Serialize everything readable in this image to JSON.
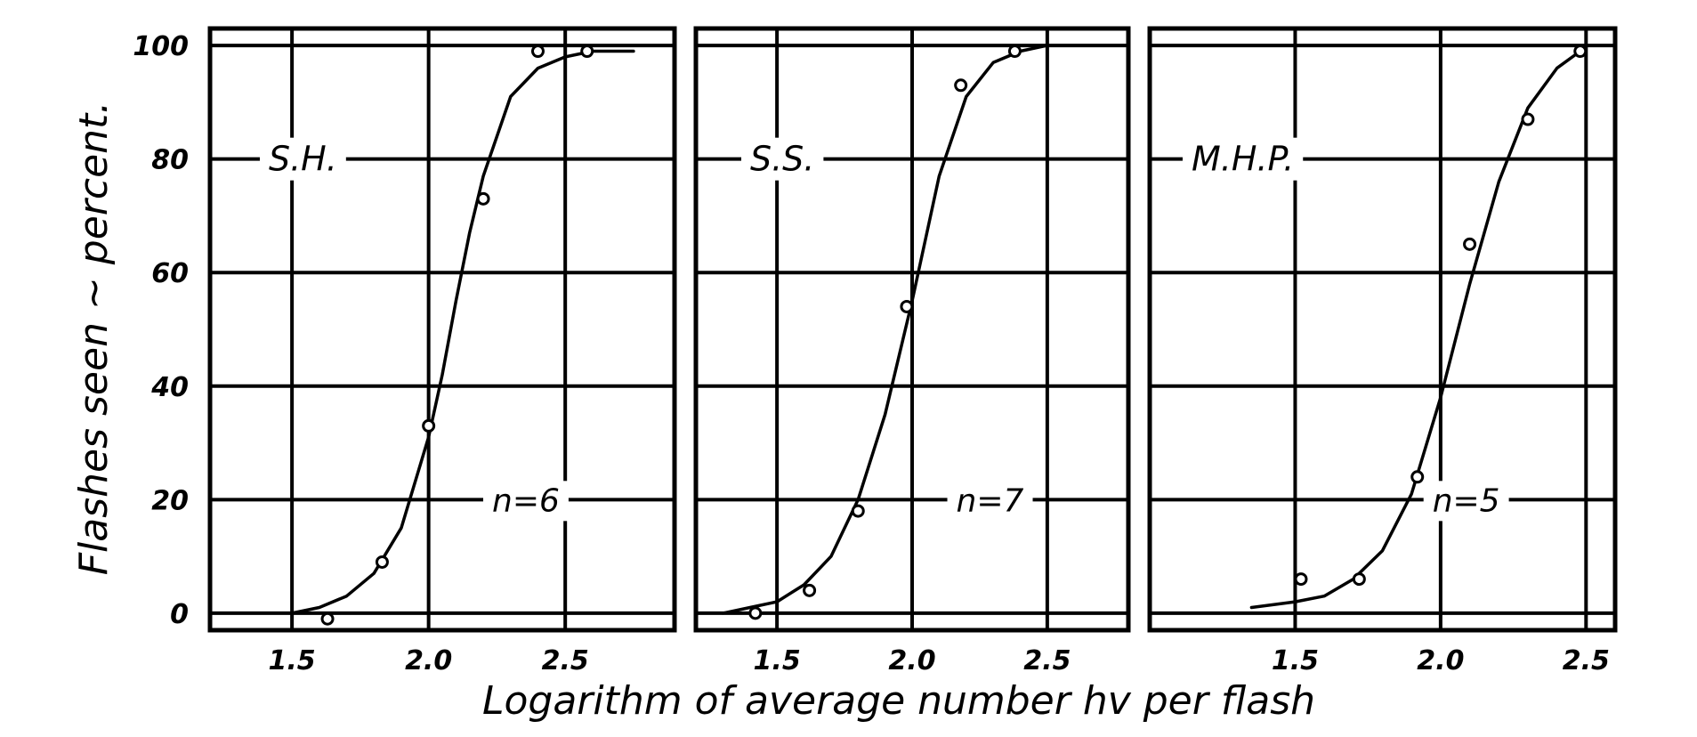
{
  "chart_data": [
    {
      "type": "scatter",
      "panel_label": "S.H.",
      "n_label": "n=6",
      "xlim": [
        1.2,
        2.9
      ],
      "ylim": [
        -3,
        103
      ],
      "x_ticks": [
        1.5,
        2.0,
        2.5
      ],
      "x_tick_labels": [
        "1.5",
        "2.0",
        "2.5"
      ],
      "y_ticks": [
        0,
        20,
        40,
        60,
        80,
        100
      ],
      "y_tick_labels": [
        "0",
        "20",
        "40",
        "60",
        "80",
        "100"
      ],
      "grid": true,
      "series": [
        {
          "points": [
            {
              "x": 1.63,
              "y": -1
            },
            {
              "x": 1.83,
              "y": 9
            },
            {
              "x": 2.0,
              "y": 33
            },
            {
              "x": 2.2,
              "y": 73
            },
            {
              "x": 2.4,
              "y": 99
            },
            {
              "x": 2.58,
              "y": 99
            }
          ],
          "curve": [
            {
              "x": 1.5,
              "y": 0
            },
            {
              "x": 1.6,
              "y": 1
            },
            {
              "x": 1.7,
              "y": 3
            },
            {
              "x": 1.8,
              "y": 7
            },
            {
              "x": 1.9,
              "y": 15
            },
            {
              "x": 2.0,
              "y": 31
            },
            {
              "x": 2.05,
              "y": 42
            },
            {
              "x": 2.1,
              "y": 55
            },
            {
              "x": 2.15,
              "y": 67
            },
            {
              "x": 2.2,
              "y": 77
            },
            {
              "x": 2.3,
              "y": 91
            },
            {
              "x": 2.4,
              "y": 96
            },
            {
              "x": 2.5,
              "y": 98
            },
            {
              "x": 2.6,
              "y": 99
            },
            {
              "x": 2.75,
              "y": 99
            }
          ]
        }
      ]
    },
    {
      "type": "scatter",
      "panel_label": "S.S.",
      "n_label": "n=7",
      "xlim": [
        1.2,
        2.8
      ],
      "ylim": [
        -3,
        103
      ],
      "x_ticks": [
        1.5,
        2.0,
        2.5
      ],
      "x_tick_labels": [
        "1.5",
        "2.0",
        "2.5"
      ],
      "y_ticks": [
        0,
        20,
        40,
        60,
        80,
        100
      ],
      "grid": true,
      "series": [
        {
          "points": [
            {
              "x": 1.42,
              "y": 0
            },
            {
              "x": 1.62,
              "y": 4
            },
            {
              "x": 1.8,
              "y": 18
            },
            {
              "x": 1.98,
              "y": 54
            },
            {
              "x": 2.18,
              "y": 93
            },
            {
              "x": 2.38,
              "y": 99
            }
          ],
          "curve": [
            {
              "x": 1.3,
              "y": 0
            },
            {
              "x": 1.4,
              "y": 1
            },
            {
              "x": 1.5,
              "y": 2
            },
            {
              "x": 1.6,
              "y": 5
            },
            {
              "x": 1.7,
              "y": 10
            },
            {
              "x": 1.8,
              "y": 20
            },
            {
              "x": 1.9,
              "y": 35
            },
            {
              "x": 2.0,
              "y": 55
            },
            {
              "x": 2.1,
              "y": 77
            },
            {
              "x": 2.2,
              "y": 91
            },
            {
              "x": 2.3,
              "y": 97
            },
            {
              "x": 2.4,
              "y": 99
            },
            {
              "x": 2.5,
              "y": 100
            }
          ]
        }
      ]
    },
    {
      "type": "scatter",
      "panel_label": "M.H.P.",
      "n_label": "n=5",
      "xlim": [
        1.0,
        2.6
      ],
      "ylim": [
        -3,
        103
      ],
      "x_ticks": [
        1.5,
        2.0,
        2.5
      ],
      "x_tick_labels": [
        "1.5",
        "2.0",
        "2.5"
      ],
      "y_ticks": [
        0,
        20,
        40,
        60,
        80,
        100
      ],
      "grid": true,
      "series": [
        {
          "points": [
            {
              "x": 1.52,
              "y": 6
            },
            {
              "x": 1.72,
              "y": 6
            },
            {
              "x": 1.92,
              "y": 24
            },
            {
              "x": 2.1,
              "y": 65
            },
            {
              "x": 2.3,
              "y": 87
            },
            {
              "x": 2.48,
              "y": 99
            }
          ],
          "curve": [
            {
              "x": 1.35,
              "y": 1
            },
            {
              "x": 1.5,
              "y": 2
            },
            {
              "x": 1.6,
              "y": 3
            },
            {
              "x": 1.7,
              "y": 6
            },
            {
              "x": 1.8,
              "y": 11
            },
            {
              "x": 1.9,
              "y": 21
            },
            {
              "x": 2.0,
              "y": 38
            },
            {
              "x": 2.1,
              "y": 58
            },
            {
              "x": 2.2,
              "y": 76
            },
            {
              "x": 2.3,
              "y": 89
            },
            {
              "x": 2.4,
              "y": 96
            },
            {
              "x": 2.48,
              "y": 99
            }
          ]
        }
      ]
    }
  ],
  "y_axis_label": "Flashes seen ~ percent.",
  "x_axis_label": "Logarithm of average number hv per flash"
}
